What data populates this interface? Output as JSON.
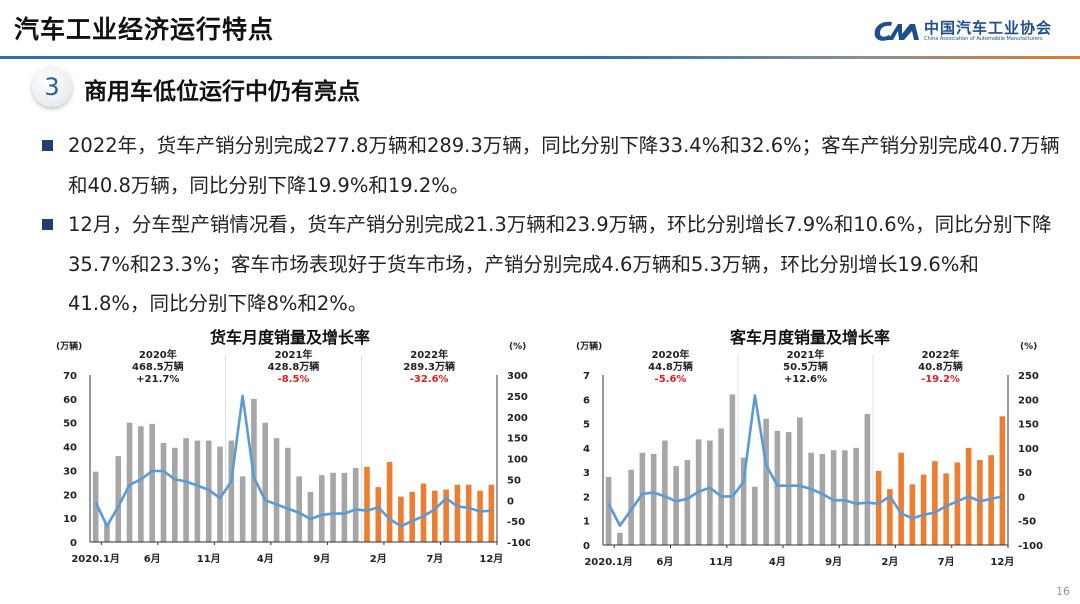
{
  "header": {
    "title": "汽车工业经济运行特点"
  },
  "logo": {
    "cn": "中国汽车工业协会",
    "en": "China Association of Automobile Manufacturers",
    "mark": "CAAM"
  },
  "section": {
    "number": "3",
    "title": "商用车低位运行中仍有亮点"
  },
  "bullets": [
    "2022年，货车产销分别完成277.8万辆和289.3万辆，同比分别下降33.4%和32.6%；客车产销分别完成40.7万辆和40.8万辆，同比分别下降19.9%和19.2%。",
    "12月，分车型产销情况看，货车产销分别完成21.3万辆和23.9万辆，环比分别增长7.9%和10.6%，同比分别下降35.7%和23.3%；客车市场表现好于货车市场，产销分别完成4.6万辆和5.3万辆，环比分别增长19.6%和41.8%，同比分别下降8%和2%。"
  ],
  "page_number": "16",
  "colors": {
    "bar_2020_2021": "#a6a6a6",
    "bar_2022": "#ed7d31",
    "line": "#5b9bd5",
    "negative_text": "#e02020",
    "accent": "#1f4e8c"
  },
  "chart_data": [
    {
      "type": "bar+line",
      "title": "货车月度销量及增长率",
      "ylabel_left": "(万辆)",
      "ylabel_right": "(%)",
      "ylim_left": [
        0,
        70
      ],
      "yticks_left": [
        "0",
        "10",
        "20",
        "30",
        "40",
        "50",
        "60",
        "70"
      ],
      "ylim_right": [
        -100,
        300
      ],
      "yticks_right": [
        "-100",
        "-50",
        "0",
        "50",
        "100",
        "150",
        "200",
        "250",
        "300"
      ],
      "xtick_labels": [
        "2020.1月",
        "6月",
        "11月",
        "4月",
        "9月",
        "2月",
        "7月",
        "12月"
      ],
      "year_annotations": [
        {
          "year": "2020年",
          "total": "468.5万辆",
          "change": "+21.7%",
          "negative": false
        },
        {
          "year": "2021年",
          "total": "428.8万辆",
          "change": "-8.5%",
          "negative": true
        },
        {
          "year": "2022年",
          "total": "289.3万辆",
          "change": "-32.6%",
          "negative": true
        }
      ],
      "sales": [
        29.5,
        8,
        36,
        50,
        48.5,
        49.5,
        41.5,
        39.5,
        43.5,
        42.5,
        42.5,
        40,
        42.5,
        27.5,
        60,
        50,
        43.5,
        39.5,
        27.5,
        21,
        28,
        29,
        29,
        31,
        31.5,
        23,
        33.5,
        19,
        21,
        24.5,
        21.5,
        22,
        24,
        24,
        21.5,
        24
      ],
      "growth": [
        -5,
        -62,
        -15,
        37,
        50,
        70,
        70,
        50,
        45,
        35,
        25,
        5,
        45,
        250,
        55,
        0,
        -10,
        -20,
        -30,
        -45,
        -35,
        -32,
        -32,
        -22,
        -25,
        -17,
        -45,
        -62,
        -50,
        -38,
        -22,
        5,
        -15,
        -18,
        -27,
        -25
      ]
    },
    {
      "type": "bar+line",
      "title": "客车月度销量及增长率",
      "ylabel_left": "(万辆)",
      "ylabel_right": "(%)",
      "ylim_left": [
        0,
        7
      ],
      "yticks_left": [
        "0",
        "1",
        "2",
        "3",
        "4",
        "5",
        "6",
        "7"
      ],
      "ylim_right": [
        -100,
        250
      ],
      "yticks_right": [
        "-100",
        "-50",
        "0",
        "50",
        "100",
        "150",
        "200",
        "250"
      ],
      "xtick_labels": [
        "2020.1月",
        "6月",
        "11月",
        "4月",
        "9月",
        "2月",
        "7月",
        "12月"
      ],
      "year_annotations": [
        {
          "year": "2020年",
          "total": "44.8万辆",
          "change": "-5.6%",
          "negative": true
        },
        {
          "year": "2021年",
          "total": "50.5万辆",
          "change": "+12.6%",
          "negative": false
        },
        {
          "year": "2022年",
          "total": "40.8万辆",
          "change": "-19.2%",
          "negative": true
        }
      ],
      "sales": [
        2.8,
        0.5,
        3.1,
        3.8,
        3.75,
        4.3,
        3.25,
        3.5,
        4.35,
        4.3,
        4.8,
        6.2,
        3.6,
        2.4,
        5.2,
        4.7,
        4.65,
        5.25,
        3.8,
        3.75,
        3.9,
        3.9,
        4.0,
        5.4,
        3.05,
        2.3,
        3.8,
        2.5,
        2.9,
        3.45,
        2.95,
        3.4,
        4.0,
        3.5,
        3.7,
        5.3
      ],
      "growth": [
        -15,
        -60,
        -28,
        5,
        8,
        0,
        -10,
        -5,
        10,
        18,
        0,
        0,
        30,
        208,
        65,
        22,
        22,
        22,
        15,
        5,
        -8,
        -8,
        -15,
        -13,
        -15,
        0,
        -35,
        -45,
        -38,
        -33,
        -20,
        -10,
        0,
        -10,
        -5,
        0
      ]
    }
  ]
}
